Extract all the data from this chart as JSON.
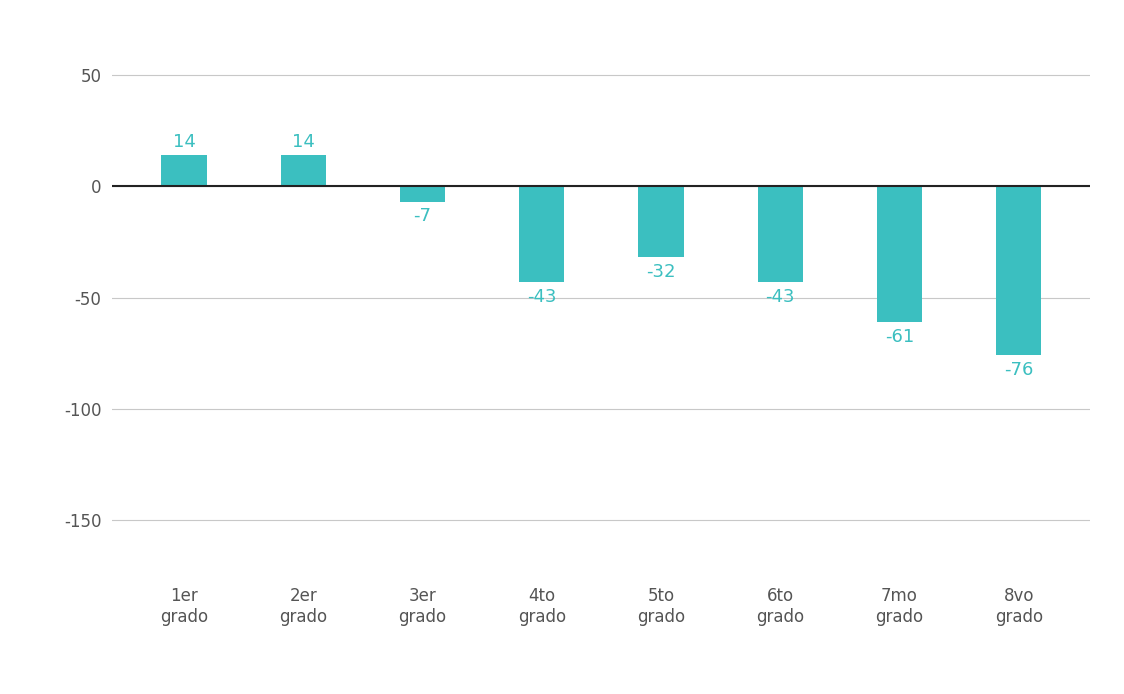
{
  "categories": [
    "1er\ngrado",
    "2er\ngrado",
    "3er\ngrado",
    "4to\ngrado",
    "5to\ngrado",
    "6to\ngrado",
    "7mo\ngrado",
    "8vo\ngrado"
  ],
  "values": [
    14,
    14,
    -7,
    -43,
    -32,
    -43,
    -61,
    -76
  ],
  "bar_color": "#3BBFC0",
  "label_color": "#3BBFC0",
  "background_color": "#ffffff",
  "grid_color": "#c8c8c8",
  "zero_line_color": "#222222",
  "ylim": [
    -175,
    68
  ],
  "yticks": [
    -150,
    -100,
    -50,
    0,
    50
  ],
  "label_fontsize": 13,
  "tick_fontsize": 12,
  "xtick_fontsize": 12,
  "bar_width": 0.38
}
